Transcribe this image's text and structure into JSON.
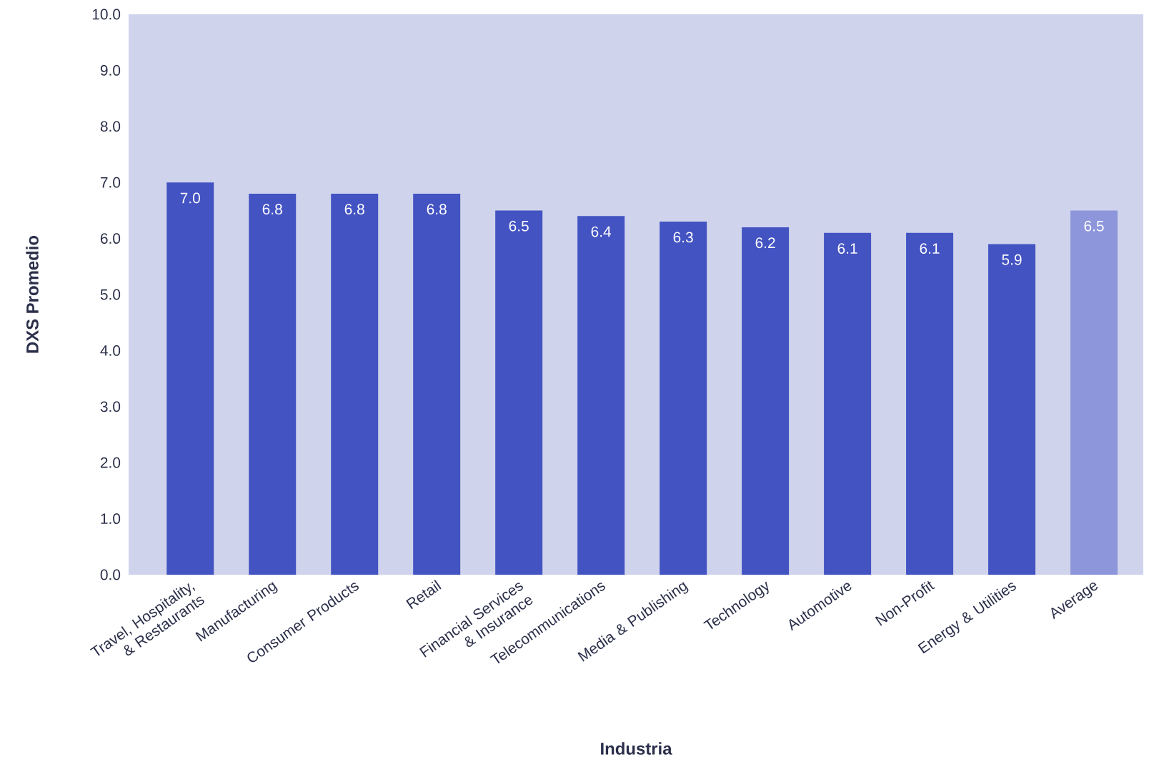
{
  "chart_data": {
    "type": "bar",
    "xlabel": "Industria",
    "ylabel": "DXS Promedio",
    "categories": [
      "Travel, Hospitality, & Restaurants",
      "Manufacturing",
      "Consumer Products",
      "Retail",
      "Financial Services & Insurance",
      "Telecommunications",
      "Media & Publishing",
      "Technology",
      "Automotive",
      "Non-Profit",
      "Energy & Utilities",
      "Average"
    ],
    "values": [
      7.0,
      6.8,
      6.8,
      6.8,
      6.5,
      6.4,
      6.3,
      6.2,
      6.1,
      6.1,
      5.9,
      6.5
    ],
    "value_labels": [
      "7.0",
      "6.8",
      "6.8",
      "6.8",
      "6.5",
      "6.4",
      "6.3",
      "6.2",
      "6.1",
      "6.1",
      "5.9",
      "6.5"
    ],
    "colors": [
      "#4353c2",
      "#4353c2",
      "#4353c2",
      "#4353c2",
      "#4353c2",
      "#4353c2",
      "#4353c2",
      "#4353c2",
      "#4353c2",
      "#4353c2",
      "#4353c2",
      "#8d96db"
    ],
    "ylim": [
      0,
      10
    ],
    "yticks": [
      {
        "value": 0,
        "label": "0.0"
      },
      {
        "value": 1,
        "label": "1.0"
      },
      {
        "value": 2,
        "label": "2.0"
      },
      {
        "value": 3,
        "label": "3.0"
      },
      {
        "value": 4,
        "label": "4.0"
      },
      {
        "value": 5,
        "label": "5.0"
      },
      {
        "value": 6,
        "label": "6.0"
      },
      {
        "value": 7,
        "label": "7.0"
      },
      {
        "value": 8,
        "label": "8.0"
      },
      {
        "value": 9,
        "label": "9.0"
      },
      {
        "value": 10,
        "label": "10.0"
      }
    ],
    "grid": false
  }
}
